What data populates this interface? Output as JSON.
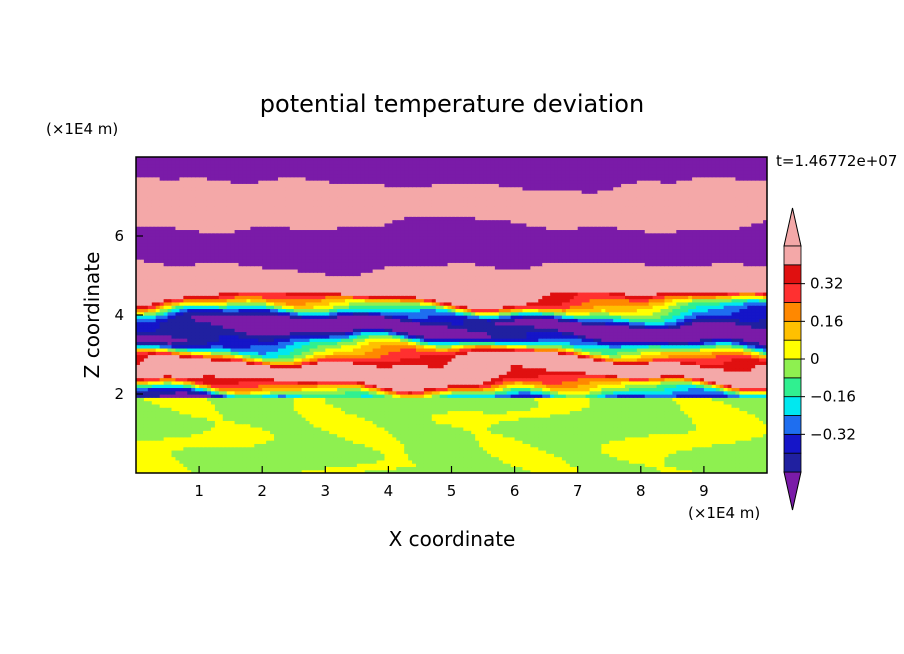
{
  "chart_data": {
    "type": "heatmap",
    "title": "potential temperature deviation",
    "xlabel": "X coordinate",
    "ylabel": "Z coordinate",
    "x_unit": "(×1E4 m)",
    "y_unit": "(×1E4 m)",
    "time_label": "t=1.46772e+07",
    "xlim": [
      0,
      10
    ],
    "ylim": [
      0,
      8
    ],
    "x_ticks": [
      "1",
      "2",
      "3",
      "4",
      "5",
      "6",
      "7",
      "8",
      "9"
    ],
    "y_ticks": [
      "2",
      "4",
      "6"
    ],
    "colorbar": {
      "tick_labels": [
        "0.32",
        "0.16",
        "0",
        "−0.16",
        "−0.32"
      ],
      "tick_values": [
        0.32,
        0.16,
        0,
        -0.16,
        -0.32
      ],
      "levels": [
        -0.48,
        -0.4,
        -0.32,
        -0.24,
        -0.16,
        -0.08,
        0,
        0.08,
        0.16,
        0.24,
        0.32,
        0.4,
        0.48
      ],
      "colors": [
        "#7a1ba8",
        "#2020a0",
        "#1515c8",
        "#1e6ef0",
        "#00e8f0",
        "#30f090",
        "#8ef050",
        "#ffff00",
        "#ffc000",
        "#ff8800",
        "#ff3030",
        "#e01010",
        "#f4a8a8"
      ]
    },
    "regions": [
      {
        "z_range": [
          0,
          2
        ],
        "pattern": "mixed layer, values near 0 (between -0.08 and 0.08)"
      },
      {
        "z_range": [
          2,
          4.6
        ],
        "pattern": "strongly banded, full range of values"
      },
      {
        "z_range": [
          4.6,
          8
        ],
        "pattern": "alternating layers of values above 0.48 and below -0.48"
      }
    ]
  }
}
